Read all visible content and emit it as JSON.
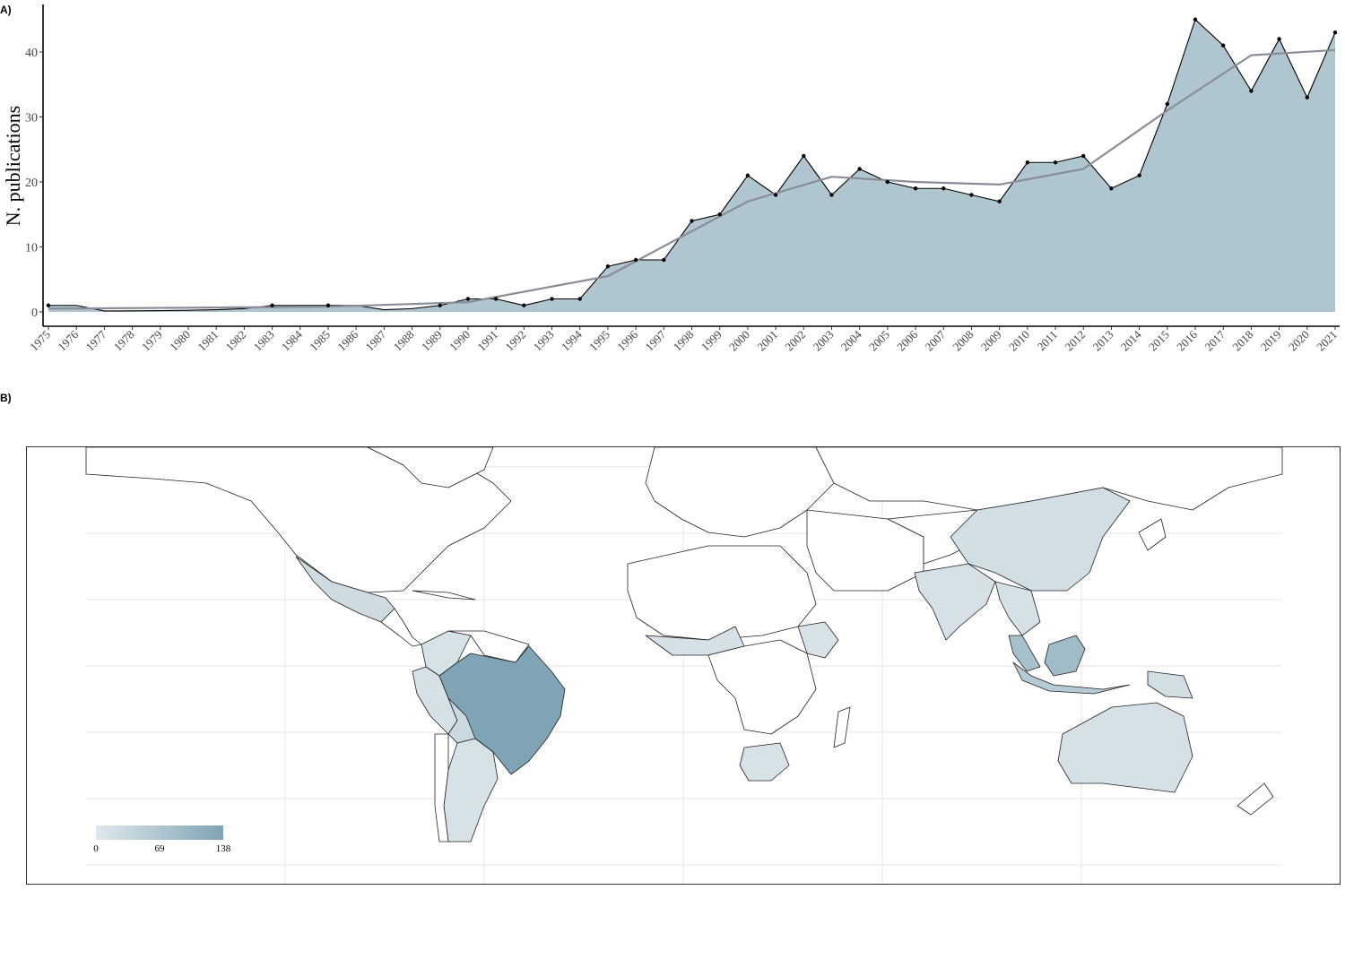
{
  "panels": {
    "a_label": "A)",
    "b_label": "B)"
  },
  "chart_data": [
    {
      "type": "area",
      "title": "",
      "xlabel": "",
      "ylabel": "N. publications",
      "x": [
        1975,
        1976,
        1977,
        1978,
        1979,
        1980,
        1981,
        1982,
        1983,
        1984,
        1985,
        1986,
        1987,
        1988,
        1989,
        1990,
        1991,
        1992,
        1993,
        1994,
        1995,
        1996,
        1997,
        1998,
        1999,
        2000,
        2001,
        2002,
        2003,
        2004,
        2005,
        2006,
        2007,
        2008,
        2009,
        2010,
        2011,
        2012,
        2013,
        2014,
        2015,
        2016,
        2017,
        2018,
        2019,
        2020,
        2021
      ],
      "y": [
        1,
        null,
        null,
        null,
        null,
        null,
        null,
        null,
        1,
        null,
        1,
        null,
        null,
        null,
        1,
        2,
        2,
        1,
        2,
        2,
        7,
        8,
        8,
        14,
        15,
        21,
        18,
        24,
        18,
        22,
        20,
        19,
        19,
        18,
        17,
        23,
        23,
        24,
        19,
        21,
        32,
        45,
        41,
        34,
        42,
        33,
        43
      ],
      "trend_line": {
        "x": [
          1975,
          1985,
          1990,
          1995,
          2000,
          2003,
          2006,
          2009,
          2012,
          2015,
          2018,
          2021
        ],
        "y": [
          0.5,
          0.8,
          1.5,
          5.5,
          17,
          20.8,
          20,
          19.6,
          22,
          31,
          39.5,
          40.3
        ]
      },
      "area_color": "#afc5cf",
      "line_color": "#000000",
      "trend_color": "#8a8d96",
      "ylim": [
        0,
        45
      ],
      "yticks": [
        0,
        10,
        20,
        30,
        40
      ],
      "grid": false
    },
    {
      "type": "heatmap",
      "title": "",
      "description_kind": "choropleth world map",
      "legend": {
        "min": "0",
        "mid": "69",
        "max": "138",
        "placement": "bottom-left"
      },
      "colors": {
        "low": "#dfe8ec",
        "high": "#7fa4b5",
        "none": "#ffffff"
      },
      "values": [
        {
          "name": "Brazil",
          "value": 138
        },
        {
          "name": "Borneo",
          "value": 90
        },
        {
          "name": "Malaysia",
          "value": 80
        },
        {
          "name": "Indonesia",
          "value": 60
        },
        {
          "name": "Bolivia",
          "value": 30
        },
        {
          "name": "Mexico",
          "value": 25
        },
        {
          "name": "China",
          "value": 20
        },
        {
          "name": "India",
          "value": 15
        },
        {
          "name": "Australia",
          "value": 15
        },
        {
          "name": "Argentina",
          "value": 12
        },
        {
          "name": "Peru",
          "value": 15
        },
        {
          "name": "Colombia",
          "value": 12
        },
        {
          "name": "South Africa",
          "value": 12
        },
        {
          "name": "Ethiopia",
          "value": 10
        },
        {
          "name": "Thailand",
          "value": 15
        },
        {
          "name": "Papua New Guinea",
          "value": 20
        }
      ]
    }
  ]
}
